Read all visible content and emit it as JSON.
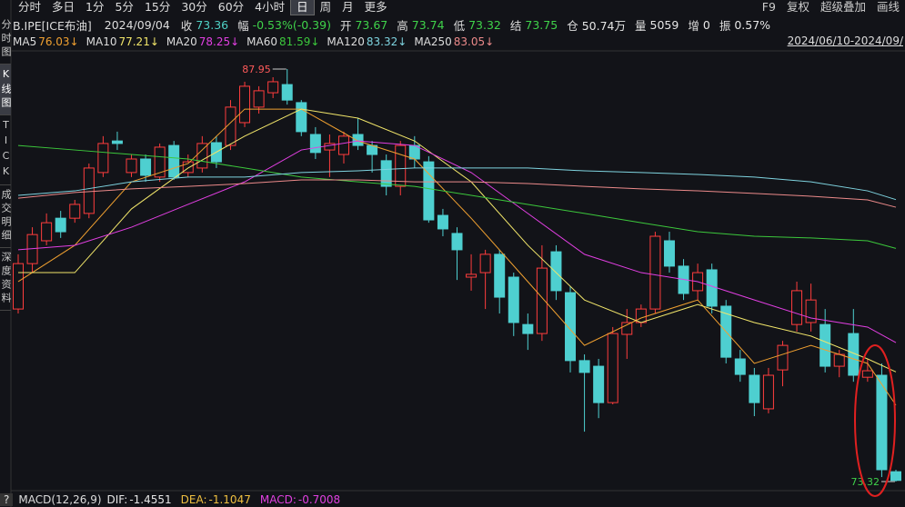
{
  "toolbar": {
    "periods": [
      "分时",
      "多日",
      "1分",
      "5分",
      "15分",
      "30分",
      "60分",
      "4小时",
      "日",
      "周",
      "月",
      "更多"
    ],
    "tools": [
      "F9",
      "复权",
      "超级叠加",
      "画线"
    ]
  },
  "sidebar": [
    "分时图",
    "K线图",
    "TICK",
    "成交明细",
    "深度资料"
  ],
  "header": {
    "symbol": "B.IPE[ICE布油]",
    "date": "2024/09/04",
    "fields": [
      {
        "label": "收",
        "value": "73.36",
        "color": "#4fd1c5"
      },
      {
        "label": "幅",
        "value": "-0.53%(-0.39)",
        "color": "#3fd24a"
      },
      {
        "label": "开",
        "value": "73.67",
        "color": "#3fd24a"
      },
      {
        "label": "高",
        "value": "73.74",
        "color": "#3fd24a"
      },
      {
        "label": "低",
        "value": "73.32",
        "color": "#3fd24a"
      },
      {
        "label": "结",
        "value": "73.75",
        "color": "#3fd24a"
      },
      {
        "label": "仓",
        "value": "50.74万",
        "color": "#e6e6e6"
      },
      {
        "label": "量",
        "value": "5059",
        "color": "#e6e6e6"
      },
      {
        "label": "增",
        "value": "0",
        "color": "#e6e6e6"
      },
      {
        "label": "振",
        "value": "0.57%",
        "color": "#e6e6e6"
      }
    ]
  },
  "date_range": "2024/06/10-2024/09/",
  "chart_data": {
    "type": "candlestick",
    "up_color": "#ff3d3d",
    "down_color": "#4ecfd0",
    "categories": [
      null,
      null,
      null,
      null,
      null,
      null,
      null,
      null,
      null,
      null,
      null,
      null,
      null,
      null,
      null,
      null,
      null,
      null,
      null,
      null,
      null,
      null,
      null,
      null,
      null,
      null,
      null,
      null,
      null,
      null,
      null,
      null,
      null,
      null,
      null,
      null,
      null,
      null,
      null,
      null,
      null,
      null,
      null,
      null,
      null,
      null,
      null,
      null,
      null,
      null,
      null,
      null,
      null,
      null,
      null,
      null,
      null,
      null,
      null,
      null,
      null,
      null,
      null
    ],
    "open": [
      79.44,
      81.05,
      81.86,
      82.66,
      82.66,
      82.83,
      84.28,
      85.4,
      84.28,
      84.76,
      84.12,
      85.24,
      84.28,
      84.44,
      85.34,
      85.24,
      86.05,
      86.6,
      87.11,
      87.4,
      86.76,
      85.63,
      85.08,
      84.92,
      85.63,
      85.24,
      84.7,
      83.79,
      85.24,
      84.66,
      82.76,
      82.12,
      80.57,
      80.73,
      81.38,
      80.57,
      78.89,
      78.57,
      81.47,
      80.02,
      77.61,
      77.41,
      76.12,
      78.54,
      78.96,
      79.44,
      81.86,
      80.96,
      80.09,
      80.83,
      79.54,
      77.67,
      77.09,
      75.9,
      77.28,
      78.89,
      78.96,
      78.89,
      77.41,
      78.57,
      77.02,
      77.09,
      73.67
    ],
    "high": [
      81.38,
      82.34,
      82.83,
      82.92,
      83.31,
      84.6,
      85.57,
      85.73,
      84.92,
      84.92,
      85.31,
      85.4,
      84.92,
      85.57,
      85.57,
      86.85,
      87.5,
      87.34,
      87.66,
      87.95,
      86.85,
      85.89,
      85.63,
      85.73,
      86.21,
      85.4,
      84.92,
      85.4,
      85.57,
      84.86,
      82.99,
      82.34,
      81.38,
      81.54,
      81.54,
      80.73,
      79.28,
      81.7,
      81.7,
      80.25,
      77.83,
      77.67,
      78.8,
      79.44,
      79.6,
      82.18,
      82.18,
      81.21,
      81.05,
      81.05,
      79.76,
      77.99,
      77.35,
      77.35,
      78.31,
      80.41,
      80.34,
      79.44,
      77.99,
      79.44,
      77.67,
      77.51,
      73.74
    ],
    "low": [
      79.28,
      80.73,
      81.7,
      81.96,
      82.5,
      82.66,
      84.12,
      85.08,
      84.12,
      83.95,
      83.95,
      84.02,
      84.12,
      84.28,
      84.44,
      85.08,
      85.89,
      86.37,
      86.92,
      86.69,
      85.57,
      84.76,
      84.12,
      84.6,
      85.08,
      84.28,
      83.47,
      83.47,
      84.44,
      82.5,
      82.02,
      80.47,
      80.09,
      79.44,
      79.28,
      78.48,
      77.99,
      78.31,
      79.76,
      77.19,
      75.09,
      75.57,
      76.06,
      77.67,
      78.8,
      79.28,
      80.73,
      79.76,
      79.76,
      79.28,
      77.51,
      76.86,
      75.64,
      75.74,
      76.7,
      78.64,
      78.64,
      77.19,
      77.02,
      76.86,
      76.86,
      73.48,
      73.32
    ],
    "close": [
      81.05,
      82.08,
      82.5,
      82.18,
      83.15,
      84.44,
      85.31,
      85.31,
      84.76,
      84.18,
      85.18,
      84.12,
      84.66,
      85.31,
      84.66,
      86.6,
      87.34,
      87.18,
      87.5,
      86.85,
      85.73,
      84.99,
      85.31,
      85.57,
      85.24,
      84.92,
      83.79,
      85.24,
      84.76,
      82.6,
      82.28,
      81.54,
      80.67,
      81.38,
      79.86,
      78.96,
      78.57,
      80.89,
      80.09,
      77.61,
      77.19,
      76.12,
      78.57,
      78.96,
      79.44,
      82.02,
      80.96,
      79.99,
      80.73,
      79.54,
      77.73,
      77.12,
      76.12,
      77.09,
      78.15,
      80.09,
      79.76,
      77.41,
      77.83,
      77.09,
      77.25,
      73.74,
      73.36
    ],
    "series": [
      {
        "name": "MA5",
        "value_label": "76.03↓",
        "color": "#f0a030",
        "x": [
          0,
          4,
          8,
          12,
          16,
          20,
          24,
          28,
          32,
          36,
          40,
          44,
          48,
          52,
          56,
          60,
          62
        ],
        "values": [
          80.41,
          81.7,
          83.95,
          84.6,
          86.53,
          86.53,
          85.4,
          84.76,
          82.66,
          80.41,
          78.15,
          79.12,
          79.76,
          77.51,
          78.15,
          77.51,
          76.03
        ]
      },
      {
        "name": "MA10",
        "value_label": "77.21↓",
        "color": "#f2e66a",
        "x": [
          0,
          4,
          8,
          12,
          16,
          20,
          24,
          28,
          32,
          36,
          40,
          44,
          48,
          52,
          56,
          60,
          62
        ],
        "values": [
          80.73,
          80.73,
          82.99,
          84.44,
          85.57,
          86.53,
          86.21,
          85.4,
          83.95,
          81.7,
          79.76,
          78.96,
          79.6,
          78.96,
          78.48,
          77.67,
          77.21
        ]
      },
      {
        "name": "MA20",
        "value_label": "78.25↓",
        "color": "#e23fe2",
        "x": [
          0,
          4,
          8,
          12,
          16,
          20,
          24,
          28,
          32,
          36,
          40,
          44,
          48,
          52,
          56,
          60,
          62
        ],
        "values": [
          81.54,
          81.7,
          82.34,
          83.15,
          83.95,
          85.08,
          85.4,
          85.24,
          84.28,
          82.83,
          81.38,
          80.73,
          80.41,
          79.76,
          79.12,
          78.8,
          78.25
        ]
      },
      {
        "name": "MA60",
        "value_label": "81.59↓",
        "color": "#3cc83c",
        "x": [
          0,
          4,
          8,
          12,
          16,
          20,
          24,
          28,
          32,
          36,
          40,
          44,
          48,
          52,
          56,
          60,
          62
        ],
        "values": [
          85.24,
          85.08,
          84.92,
          84.76,
          84.44,
          84.12,
          83.95,
          83.79,
          83.47,
          83.15,
          82.83,
          82.5,
          82.18,
          82.02,
          81.96,
          81.86,
          81.59
        ]
      },
      {
        "name": "MA120",
        "value_label": "83.32↓",
        "color": "#7fd4e0",
        "x": [
          0,
          4,
          8,
          12,
          16,
          20,
          24,
          28,
          32,
          36,
          40,
          44,
          48,
          52,
          56,
          60,
          62
        ],
        "values": [
          83.47,
          83.63,
          83.95,
          84.12,
          84.12,
          84.28,
          84.34,
          84.44,
          84.44,
          84.44,
          84.34,
          84.28,
          84.21,
          84.12,
          83.95,
          83.63,
          83.32
        ]
      },
      {
        "name": "MA250",
        "value_label": "83.05↓",
        "color": "#ec8a8a",
        "x": [
          0,
          4,
          8,
          12,
          16,
          20,
          24,
          28,
          32,
          36,
          40,
          44,
          48,
          52,
          56,
          60,
          62
        ],
        "values": [
          83.37,
          83.57,
          83.7,
          83.79,
          83.89,
          84.02,
          84.02,
          83.95,
          83.95,
          83.89,
          83.79,
          83.7,
          83.63,
          83.54,
          83.44,
          83.31,
          83.05
        ]
      }
    ]
  },
  "macd": {
    "help": "?",
    "title": "MACD(12,26,9)",
    "items": [
      {
        "label": "DIF:",
        "value": "-1.4551",
        "color": "#e6e6e6"
      },
      {
        "label": "DEA:",
        "value": "-1.1047",
        "color": "#f0c040"
      },
      {
        "label": "MACD:",
        "value": "-0.7008",
        "color": "#e040e0"
      }
    ]
  }
}
